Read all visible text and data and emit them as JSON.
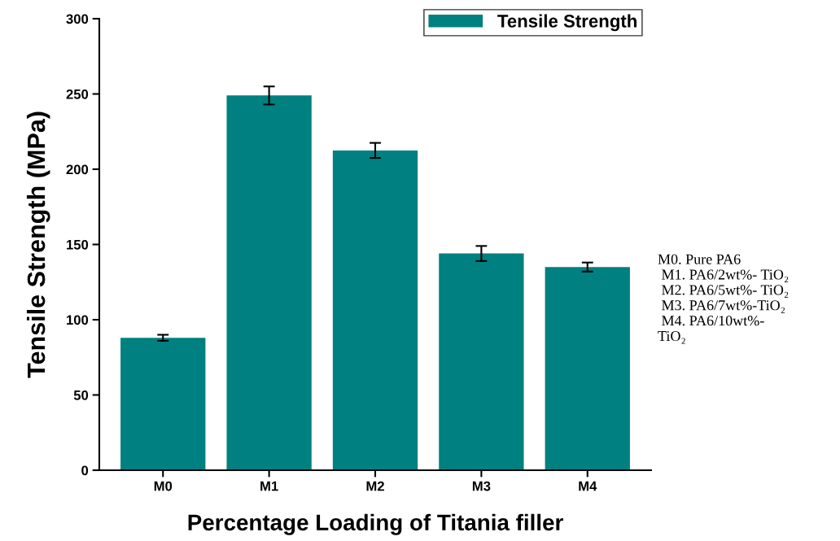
{
  "chart_data": {
    "type": "bar",
    "xlabel": "Percentage Loading of Titania filler",
    "ylabel": "Tensile Strength (MPa)",
    "categories": [
      "M0",
      "M1",
      "M2",
      "M3",
      "M4"
    ],
    "series": [
      {
        "name": "Tensile Strength",
        "color": "#008080",
        "values": [
          88,
          249,
          212.5,
          144,
          135
        ],
        "errors": [
          2,
          6,
          5,
          5,
          3
        ]
      }
    ],
    "ylim": [
      0,
      300
    ],
    "yticks": [
      0,
      50,
      100,
      150,
      200,
      250,
      300
    ],
    "grid": false,
    "legend": "top right",
    "annotations": [
      "M0. Pure PA6\n M1. PA6/2wt%- TiO₂\n M2. PA6/5wt%- TiO₂\n M3. PA6/7wt%-TiO₂\n M4. PA6/10wt%-\nTiO₂"
    ]
  }
}
